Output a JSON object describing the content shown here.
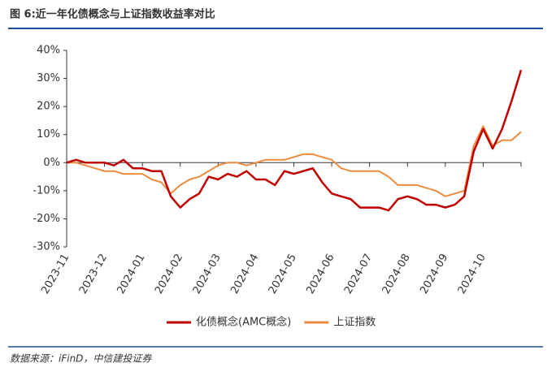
{
  "title": "图 6:近一年化债概念与上证指数收益率对比",
  "source": "数据来源：iFinD，中信建投证券",
  "chart_data": {
    "type": "line",
    "categories": [
      "2023-11",
      null,
      null,
      null,
      "2023-12",
      null,
      null,
      null,
      "2024-01",
      null,
      null,
      null,
      "2024-02",
      null,
      null,
      null,
      "2024-03",
      null,
      null,
      null,
      "2024-04",
      null,
      null,
      null,
      "2024-05",
      null,
      null,
      null,
      "2024-06",
      null,
      null,
      null,
      "2024-07",
      null,
      null,
      null,
      "2024-08",
      null,
      null,
      null,
      "2024-09",
      null,
      null,
      null,
      "2024-10",
      null,
      null,
      null,
      null
    ],
    "series": [
      {
        "name": "化债概念(AMC概念)",
        "color": "#c00000",
        "values": [
          0,
          1,
          0,
          0,
          0,
          -1,
          1,
          -2,
          -2,
          -3,
          -3,
          -12,
          -16,
          -13,
          -11,
          -5,
          -6,
          -4,
          -5,
          -3,
          -6,
          -6,
          -8,
          -3,
          -4,
          -3,
          -2,
          -7,
          -11,
          -12,
          -13,
          -16,
          -16,
          -16,
          -17,
          -13,
          -12,
          -13,
          -15,
          -15,
          -16,
          -15,
          -12,
          4,
          12,
          5,
          12,
          22,
          33
        ]
      },
      {
        "name": "上证指数",
        "color": "#ed8b3c",
        "values": [
          0,
          0,
          -1,
          -2,
          -3,
          -3,
          -4,
          -4,
          -4,
          -6,
          -7,
          -11,
          -8,
          -6,
          -5,
          -3,
          -1,
          0,
          0,
          -1,
          0,
          1,
          1,
          1,
          2,
          3,
          3,
          2,
          1,
          -2,
          -3,
          -3,
          -3,
          -3,
          -5,
          -8,
          -8,
          -8,
          -9,
          -10,
          -12,
          -11,
          -10,
          6,
          13,
          6,
          8,
          8,
          11
        ]
      }
    ],
    "ylim": [
      -30,
      40
    ],
    "yticks": [
      {
        "value": -30,
        "label": "-30%"
      },
      {
        "value": -20,
        "label": "-20%"
      },
      {
        "value": -10,
        "label": "-10%"
      },
      {
        "value": 0,
        "label": "0%"
      },
      {
        "value": 10,
        "label": "10%"
      },
      {
        "value": 20,
        "label": "20%"
      },
      {
        "value": 30,
        "label": "30%"
      },
      {
        "value": 40,
        "label": "40%"
      }
    ],
    "legend": "bottom"
  }
}
